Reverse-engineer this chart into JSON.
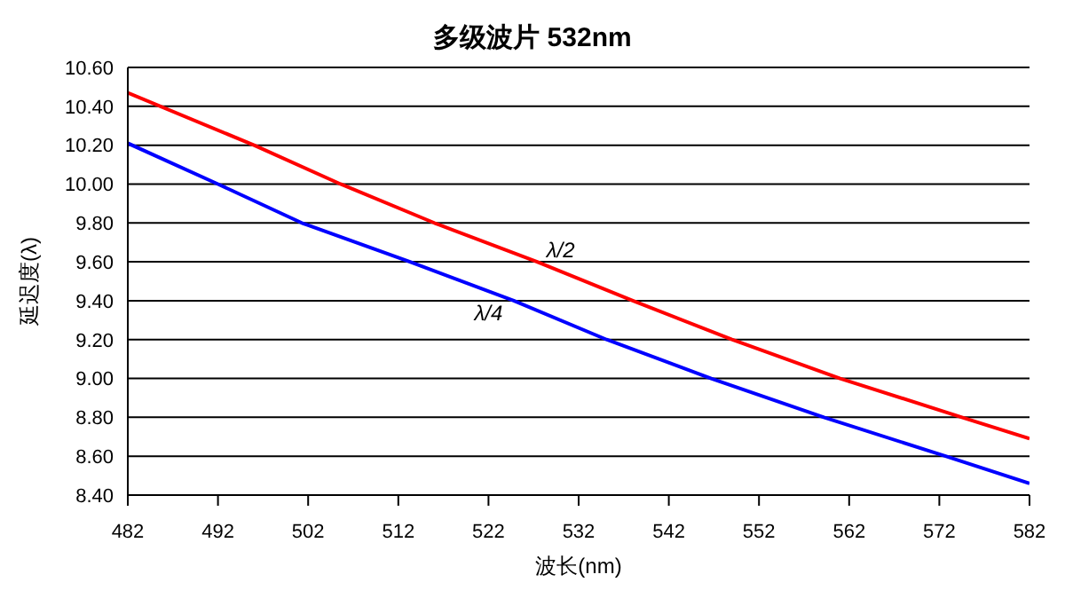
{
  "chart_data": {
    "type": "line",
    "title": "多级波片 532nm",
    "xlabel": "波长(nm)",
    "ylabel": "延迟度(λ)",
    "series": [
      {
        "color": "#ff0000",
        "x": [
          482,
          496,
          505.6,
          516,
          527.4,
          538,
          549,
          561,
          574.5,
          582
        ],
        "values": [
          10.47,
          10.2,
          10.0,
          9.8,
          9.6,
          9.4,
          9.2,
          9.0,
          8.8,
          8.69
        ]
      },
      {
        "color": "#0000ff",
        "x": [
          482,
          492,
          501.3,
          513.3,
          524.8,
          535.1,
          546.7,
          559.2,
          572.7,
          582
        ],
        "values": [
          10.21,
          10.0,
          9.8,
          9.6,
          9.4,
          9.2,
          9.0,
          8.8,
          8.6,
          8.46
        ]
      }
    ],
    "annotations": [
      {
        "text": "λ/2",
        "x": 530,
        "y": 9.55
      },
      {
        "text": "λ/4",
        "x": 522,
        "y": 9.45
      }
    ],
    "xlim": [
      482,
      582
    ],
    "xticks": [
      482,
      492,
      502,
      512,
      522,
      532,
      542,
      552,
      562,
      572,
      582
    ],
    "ylim": [
      8.4,
      10.6
    ],
    "yticks": [
      {
        "value": 8.4,
        "label": "8.40"
      },
      {
        "value": 8.6,
        "label": "8.60"
      },
      {
        "value": 8.8,
        "label": "8.80"
      },
      {
        "value": 9.0,
        "label": "9.00"
      },
      {
        "value": 9.2,
        "label": "9.20"
      },
      {
        "value": 9.4,
        "label": "9.40"
      },
      {
        "value": 9.6,
        "label": "9.60"
      },
      {
        "value": 9.8,
        "label": "9.80"
      },
      {
        "value": 10.0,
        "label": "10.00"
      },
      {
        "value": 10.2,
        "label": "10.20"
      },
      {
        "value": 10.4,
        "label": "10.40"
      },
      {
        "value": 10.6,
        "label": "10.60"
      }
    ],
    "grid": "y",
    "legend": false,
    "marker": "none",
    "line_style": "solid"
  }
}
